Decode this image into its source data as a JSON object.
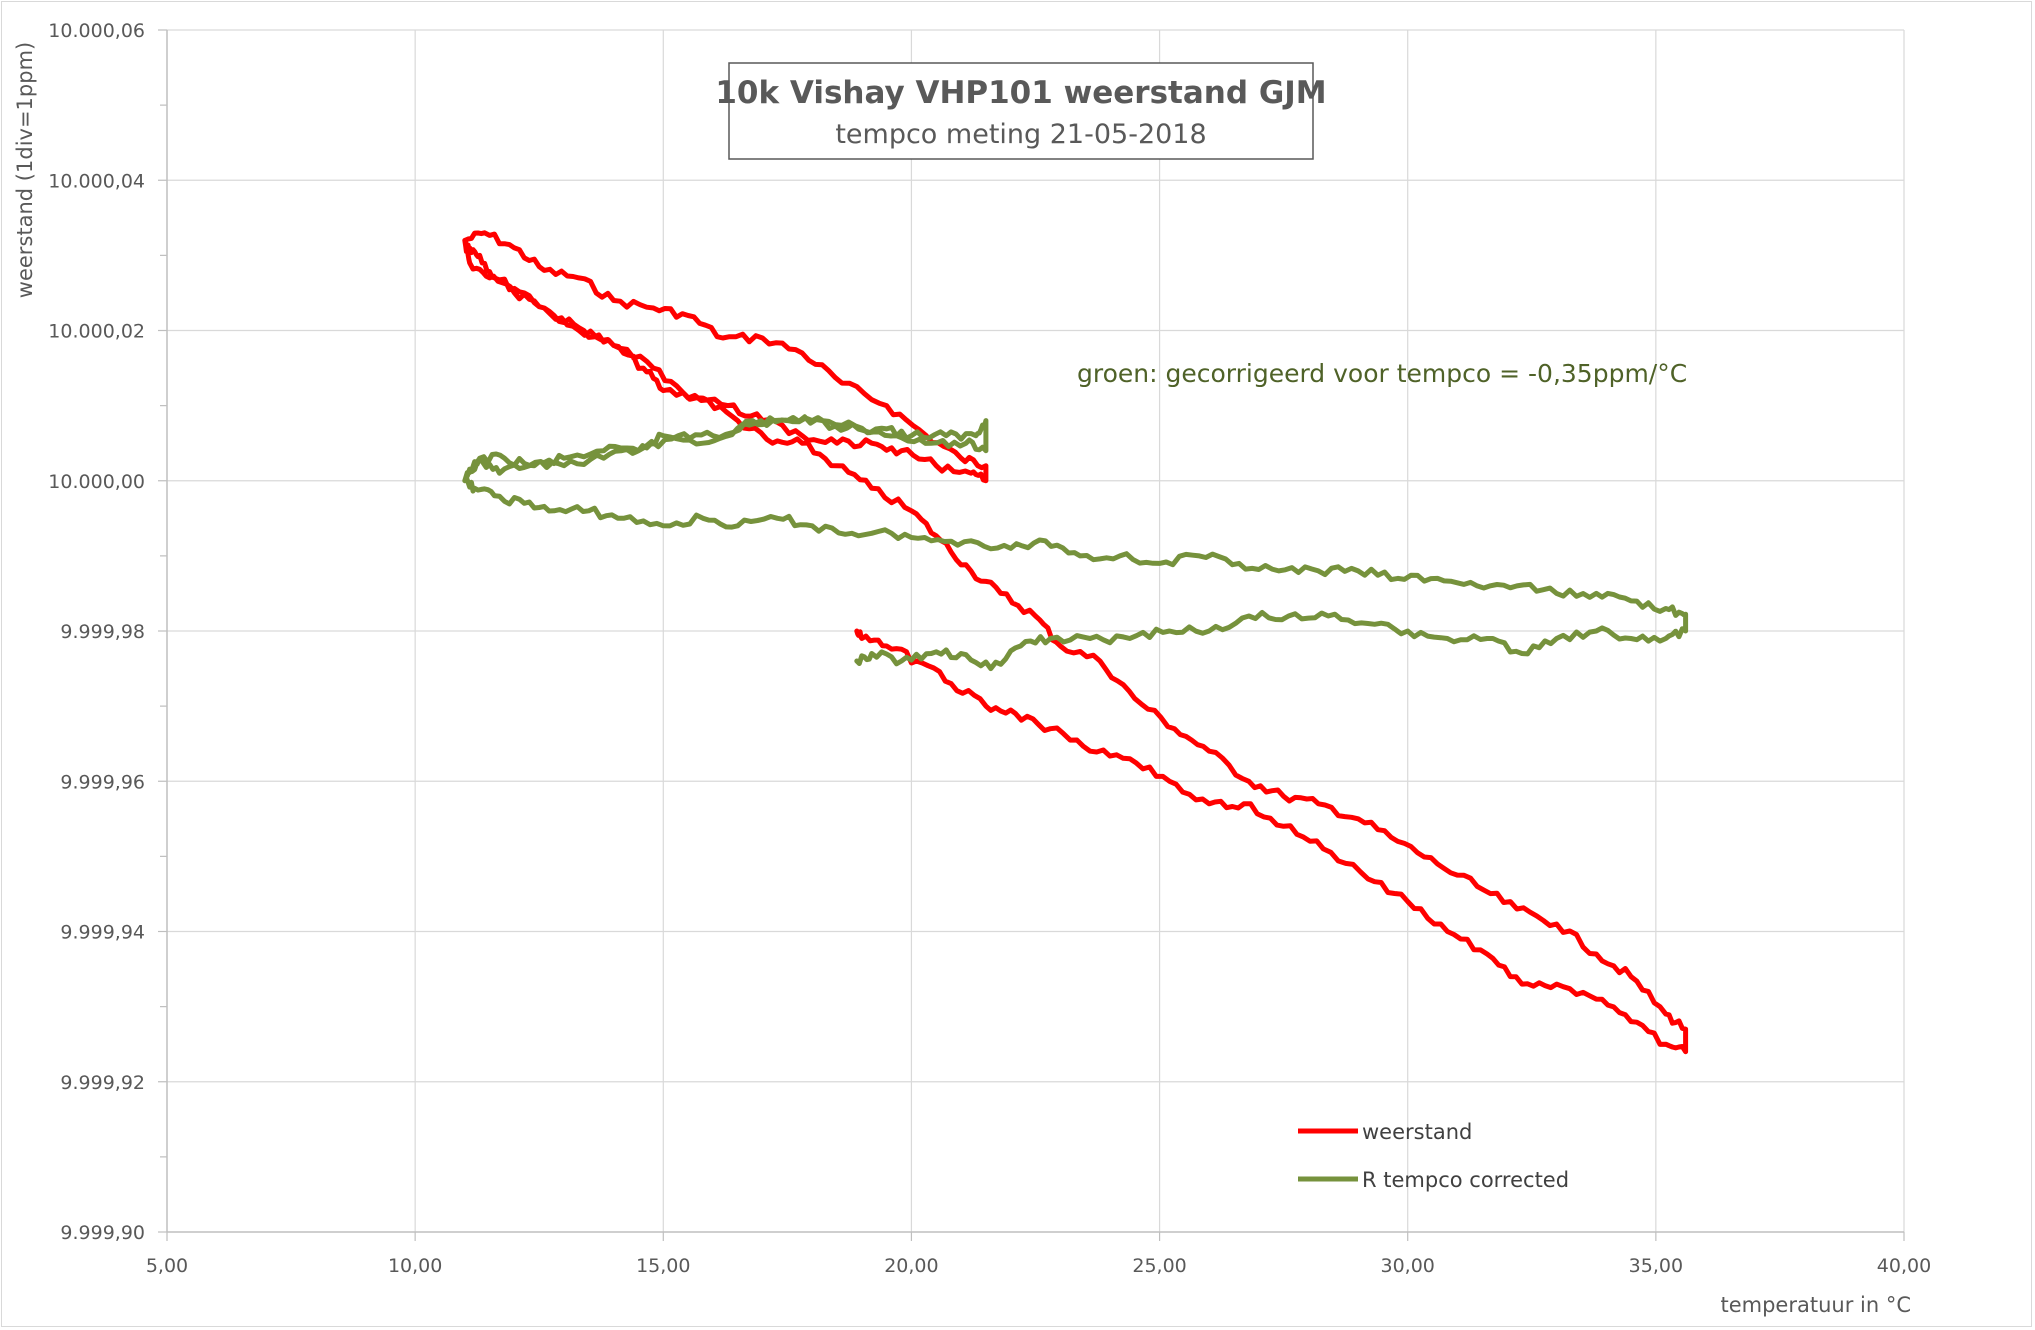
{
  "chart_data": {
    "type": "line",
    "title": "10k Vishay VHP101 weerstand GJM",
    "subtitle": "tempco meting 21-05-2018",
    "xlabel": "temperatuur in °C",
    "ylabel": "weerstand (1div=1ppm)",
    "annotation": "groen: gecorrigeerd voor tempco = -0,35ppm/°C",
    "xlim": [
      5,
      40
    ],
    "ylim": [
      9999.9,
      10000.06
    ],
    "x_ticks": [
      "5,00",
      "10,00",
      "15,00",
      "20,00",
      "25,00",
      "30,00",
      "35,00",
      "40,00"
    ],
    "y_ticks": [
      "9.999,90",
      "9.999,92",
      "9.999,94",
      "9.999,96",
      "9.999,98",
      "10.000,00",
      "10.000,02",
      "10.000,04",
      "10.000,06"
    ],
    "grid": true,
    "legend_position": "bottom-right",
    "series": [
      {
        "name": "weerstand",
        "color": "#ff0000",
        "x": [
          11.0,
          11.4,
          12.0,
          12.6,
          13.3,
          14.0,
          14.8,
          15.5,
          16.2,
          17.0,
          17.8,
          18.6,
          19.5,
          20.3,
          21.0,
          21.5,
          21.5,
          21.2,
          20.5,
          19.8,
          19.2,
          18.5,
          17.8,
          17.0,
          16.3,
          15.5,
          14.8,
          14.0,
          13.3,
          12.6,
          12.0,
          11.5,
          11.1,
          11.0,
          11.1,
          11.3,
          11.6,
          12.2,
          12.8,
          13.4,
          14.0,
          14.6,
          15.0,
          15.8,
          16.5,
          17.2,
          17.8,
          18.5,
          19.2,
          20.0,
          20.6,
          21.2,
          21.8,
          22.5,
          23.0,
          23.8,
          24.5,
          25.3,
          26.0,
          26.8,
          27.5,
          28.2,
          29.0,
          29.8,
          30.6,
          31.4,
          32.2,
          33.0,
          33.8,
          34.5,
          35.2,
          35.6,
          35.6,
          35.2,
          34.5,
          33.8,
          33.0,
          32.3,
          31.6,
          30.8,
          30.0,
          29.2,
          28.3,
          27.5,
          26.7,
          26.0,
          25.2,
          24.4,
          23.6,
          22.8,
          22.1,
          21.5,
          20.8,
          20.1,
          19.5,
          19.0,
          18.9
        ],
        "y": [
          10000.032,
          10000.033,
          10000.031,
          10000.028,
          10000.027,
          10000.024,
          10000.023,
          10000.022,
          10000.019,
          10000.019,
          10000.017,
          10000.013,
          10000.01,
          10000.006,
          10000.003,
          10000.002,
          10000.0,
          10000.001,
          10000.002,
          10000.004,
          10000.005,
          10000.005,
          10000.006,
          10000.008,
          10000.01,
          10000.011,
          10000.015,
          10000.018,
          10000.02,
          10000.023,
          10000.025,
          10000.027,
          10000.029,
          10000.032,
          10000.031,
          10000.03,
          10000.027,
          10000.025,
          10000.022,
          10000.02,
          10000.018,
          10000.015,
          10000.012,
          10000.011,
          10000.008,
          10000.005,
          10000.005,
          10000.002,
          9999.999,
          9999.996,
          9999.992,
          9999.988,
          9999.985,
          9999.982,
          9999.978,
          9999.976,
          9999.971,
          9999.967,
          9999.964,
          9999.96,
          9999.958,
          9999.957,
          9999.955,
          9999.952,
          9999.949,
          9999.946,
          9999.943,
          9999.941,
          9999.937,
          9999.934,
          9999.929,
          9999.927,
          9999.924,
          9999.925,
          9999.928,
          9999.931,
          9999.933,
          9999.933,
          9999.937,
          9999.94,
          9999.944,
          9999.947,
          9999.951,
          9999.954,
          9999.957,
          9999.957,
          9999.96,
          9999.963,
          9999.964,
          9999.967,
          9999.969,
          9999.97,
          9999.973,
          9999.976,
          9999.978,
          9999.979,
          9999.98
        ]
      },
      {
        "name": "R tempco corrected",
        "color": "#76923c",
        "x": [
          11.0,
          11.3,
          11.8,
          12.4,
          13.0,
          13.8,
          14.5,
          15.0,
          15.8,
          16.5,
          17.2,
          18.0,
          18.7,
          19.4,
          20.0,
          20.7,
          21.3,
          21.5,
          21.5,
          21.1,
          20.4,
          19.7,
          19.0,
          18.2,
          17.5,
          16.8,
          16.0,
          15.3,
          14.5,
          13.8,
          13.0,
          12.3,
          11.7,
          11.3,
          11.0,
          11.2,
          11.6,
          12.2,
          12.8,
          13.5,
          14.2,
          15.0,
          15.8,
          16.5,
          17.3,
          18.0,
          18.8,
          19.6,
          20.4,
          21.2,
          22.0,
          22.7,
          23.4,
          24.2,
          25.0,
          25.8,
          26.6,
          27.4,
          28.2,
          29.0,
          29.8,
          30.6,
          31.4,
          32.2,
          33.0,
          33.8,
          34.5,
          35.2,
          35.6,
          35.6,
          35.2,
          34.5,
          33.8,
          33.0,
          32.3,
          31.6,
          30.8,
          30.0,
          29.2,
          28.4,
          27.6,
          26.8,
          26.0,
          25.2,
          24.4,
          23.6,
          22.8,
          22.2,
          21.6,
          21.0,
          20.4,
          19.8,
          19.2,
          18.9
        ],
        "y": [
          10000.0,
          10000.003,
          10000.003,
          10000.002,
          10000.003,
          10000.004,
          10000.004,
          10000.006,
          10000.005,
          10000.007,
          10000.008,
          10000.008,
          10000.007,
          10000.007,
          10000.006,
          10000.006,
          10000.006,
          10000.008,
          10000.004,
          10000.005,
          10000.005,
          10000.006,
          10000.007,
          10000.008,
          10000.008,
          10000.008,
          10000.006,
          10000.006,
          10000.004,
          10000.003,
          10000.002,
          10000.002,
          10000.001,
          10000.003,
          10000.0,
          9999.999,
          9999.998,
          9999.997,
          9999.996,
          9999.996,
          9999.995,
          9999.994,
          9999.995,
          9999.994,
          9999.995,
          9999.994,
          9999.993,
          9999.993,
          9999.992,
          9999.992,
          9999.991,
          9999.992,
          9999.99,
          9999.99,
          9999.989,
          9999.99,
          9999.989,
          9999.988,
          9999.988,
          9999.988,
          9999.987,
          9999.987,
          9999.986,
          9999.986,
          9999.985,
          9999.985,
          9999.984,
          9999.983,
          9999.982,
          9999.98,
          9999.979,
          9999.979,
          9999.98,
          9999.979,
          9999.977,
          9999.979,
          9999.979,
          9999.98,
          9999.981,
          9999.982,
          9999.982,
          9999.982,
          9999.98,
          9999.98,
          9999.979,
          9999.979,
          9999.979,
          9999.978,
          9999.975,
          9999.977,
          9999.977,
          9999.976,
          9999.977,
          9999.976
        ]
      }
    ]
  }
}
